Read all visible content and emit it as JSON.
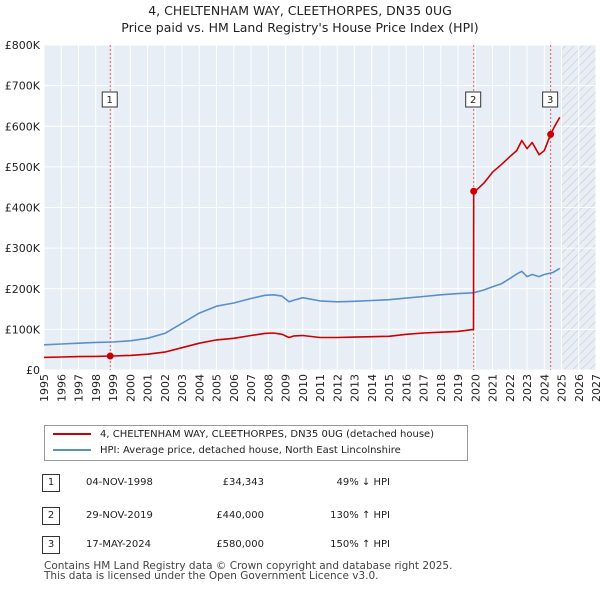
{
  "chart_data": {
    "type": "line",
    "title": "4, CHELTENHAM WAY, CLEETHORPES, DN35 0UG",
    "subtitle": "Price paid vs. HM Land Registry's House Price Index (HPI)",
    "xlim": [
      1995,
      2027
    ],
    "ylim": [
      0,
      800000
    ],
    "yticks": [
      {
        "value": 0,
        "label": "£0"
      },
      {
        "value": 100000,
        "label": "£100K"
      },
      {
        "value": 200000,
        "label": "£200K"
      },
      {
        "value": 300000,
        "label": "£300K"
      },
      {
        "value": 400000,
        "label": "£400K"
      },
      {
        "value": 500000,
        "label": "£500K"
      },
      {
        "value": 600000,
        "label": "£600K"
      },
      {
        "value": 700000,
        "label": "£700K"
      },
      {
        "value": 800000,
        "label": "£800K"
      }
    ],
    "xticks": [
      "1995",
      "1996",
      "1997",
      "1998",
      "1999",
      "2000",
      "2001",
      "2002",
      "2003",
      "2004",
      "2005",
      "2006",
      "2007",
      "2008",
      "2009",
      "2010",
      "2011",
      "2012",
      "2013",
      "2014",
      "2015",
      "2016",
      "2017",
      "2018",
      "2019",
      "2020",
      "2021",
      "2022",
      "2023",
      "2024",
      "2025",
      "2026",
      "2027"
    ],
    "forecast_start": 2025.0,
    "series": [
      {
        "name": "4, CHELTENHAM WAY, CLEETHORPES, DN35 0UG (detached house)",
        "color": "#cc0000",
        "x": [
          1995.0,
          1996.0,
          1997.0,
          1998.0,
          1998.84,
          1999.0,
          2000.0,
          2001.0,
          2002.0,
          2003.0,
          2004.0,
          2005.0,
          2006.0,
          2007.0,
          2007.8,
          2008.3,
          2008.8,
          2009.2,
          2009.5,
          2010.0,
          2011.0,
          2012.0,
          2013.0,
          2014.0,
          2015.0,
          2016.0,
          2017.0,
          2018.0,
          2019.0,
          2019.9,
          2019.91,
          2020.0,
          2020.5,
          2021.0,
          2021.5,
          2022.0,
          2022.4,
          2022.7,
          2023.0,
          2023.3,
          2023.7,
          2024.0,
          2024.37,
          2024.6,
          2024.9
        ],
        "y": [
          31000,
          32000,
          33000,
          33500,
          34343,
          34500,
          36000,
          39000,
          44000,
          55000,
          66000,
          74000,
          78000,
          85000,
          90000,
          91000,
          88000,
          80000,
          84000,
          85000,
          80000,
          80000,
          81000,
          82000,
          83000,
          88000,
          91000,
          93000,
          95000,
          100000,
          440000,
          440000,
          460000,
          487000,
          505000,
          525000,
          540000,
          565000,
          545000,
          560000,
          530000,
          540000,
          580000,
          600000,
          622000
        ]
      },
      {
        "name": "HPI: Average price, detached house, North East Lincolnshire",
        "color": "#5b8fc7",
        "x": [
          1995.0,
          1996.0,
          1997.0,
          1998.0,
          1999.0,
          2000.0,
          2001.0,
          2002.0,
          2003.0,
          2004.0,
          2005.0,
          2006.0,
          2007.0,
          2007.8,
          2008.3,
          2008.8,
          2009.2,
          2009.5,
          2010.0,
          2011.0,
          2012.0,
          2013.0,
          2014.0,
          2015.0,
          2016.0,
          2017.0,
          2018.0,
          2019.0,
          2019.9,
          2020.5,
          2021.0,
          2021.5,
          2022.0,
          2022.4,
          2022.7,
          2023.0,
          2023.3,
          2023.7,
          2024.0,
          2024.5,
          2024.9
        ],
        "y": [
          62000,
          64000,
          66000,
          68000,
          69000,
          72000,
          78000,
          90000,
          115000,
          140000,
          157000,
          165000,
          176000,
          184000,
          185000,
          182000,
          168000,
          172000,
          178000,
          170000,
          168000,
          169000,
          171000,
          173000,
          177000,
          181000,
          185000,
          188000,
          190000,
          197000,
          205000,
          212000,
          225000,
          236000,
          243000,
          230000,
          235000,
          230000,
          235000,
          240000,
          250000
        ]
      }
    ],
    "sales": [
      {
        "label": "1",
        "x": 1998.84,
        "y": 34343
      },
      {
        "label": "2",
        "x": 2019.91,
        "y": 440000
      },
      {
        "label": "3",
        "x": 2024.37,
        "y": 580000
      }
    ]
  },
  "legend": {
    "property": "4, CHELTENHAM WAY, CLEETHORPES, DN35 0UG (detached house)",
    "hpi": "HPI: Average price, detached house, North East Lincolnshire"
  },
  "transactions": [
    {
      "num": "1",
      "date": "04-NOV-1998",
      "price": "£34,343",
      "hpi": "49% ↓ HPI"
    },
    {
      "num": "2",
      "date": "29-NOV-2019",
      "price": "£440,000",
      "hpi": "130% ↑ HPI"
    },
    {
      "num": "3",
      "date": "17-MAY-2024",
      "price": "£580,000",
      "hpi": "150% ↑ HPI"
    }
  ],
  "footer": {
    "line1": "Contains HM Land Registry data © Crown copyright and database right 2025.",
    "line2": "This data is licensed under the Open Government Licence v3.0."
  },
  "colors": {
    "property": "#cc0000",
    "hpi": "#5b8fc7",
    "sale_line": "#e06060"
  }
}
